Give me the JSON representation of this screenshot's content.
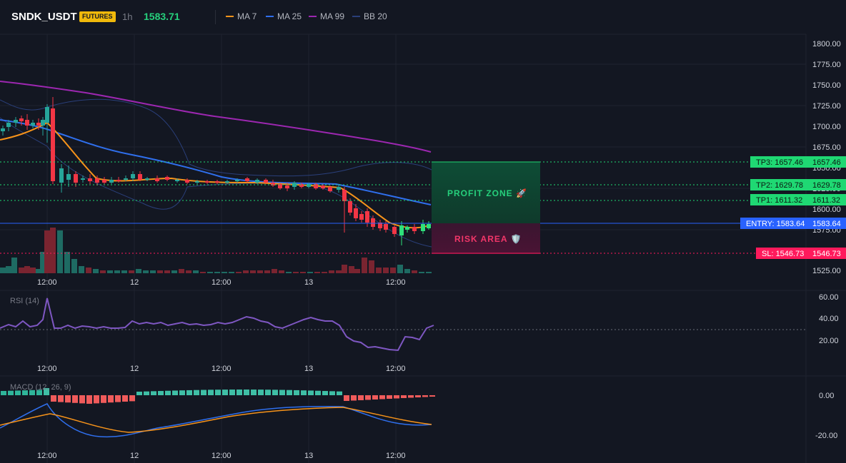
{
  "header": {
    "symbol": "SNDK_USDT",
    "badge": "FUTURES",
    "timeframe": "1h",
    "price": "1583.71",
    "legend": [
      {
        "label": "MA 7",
        "color": "#f7931a"
      },
      {
        "label": "MA 25",
        "color": "#2f6fed"
      },
      {
        "label": "MA 99",
        "color": "#9c27b0"
      },
      {
        "label": "BB 20",
        "color": "#2a3f7a"
      }
    ]
  },
  "price_axis": [
    "1800.00",
    "1775.00",
    "1750.00",
    "1725.00",
    "1700.00",
    "1675.00",
    "1650.00",
    "1625.00",
    "1600.00",
    "1575.00",
    "1525.00"
  ],
  "time_axis": [
    "12:00",
    "12",
    "12:00",
    "13",
    "12:00"
  ],
  "levels": {
    "tp3": {
      "tag": "TP3: 1657.46",
      "value": "1657.46"
    },
    "tp2": {
      "tag": "TP2: 1629.78",
      "value": "1629.78"
    },
    "tp1": {
      "tag": "TP1: 1611.32",
      "value": "1611.32"
    },
    "entry": {
      "tag": "ENTRY: 1583.64",
      "value": "1583.64"
    },
    "sl": {
      "tag": "SL: 1546.73",
      "value": "1546.73"
    }
  },
  "zones": {
    "profit": "PROFIT ZONE 🚀",
    "risk": "RISK AREA 🛡️"
  },
  "rsi": {
    "label": "RSI (14)",
    "axis": [
      "60.00",
      "40.00",
      "20.00"
    ]
  },
  "macd": {
    "label": "MACD (12, 26, 9)",
    "axis": [
      "0.00",
      "-20.00"
    ]
  },
  "colors": {
    "up": "#26a69a",
    "up_bright": "#2ee07a",
    "down": "#f23645",
    "tp": "#1fd873",
    "entry": "#2962ff",
    "sl": "#ff1a5c",
    "rsi": "#7e57c2",
    "macd": "#2f6fed",
    "signal": "#f7931a"
  }
}
